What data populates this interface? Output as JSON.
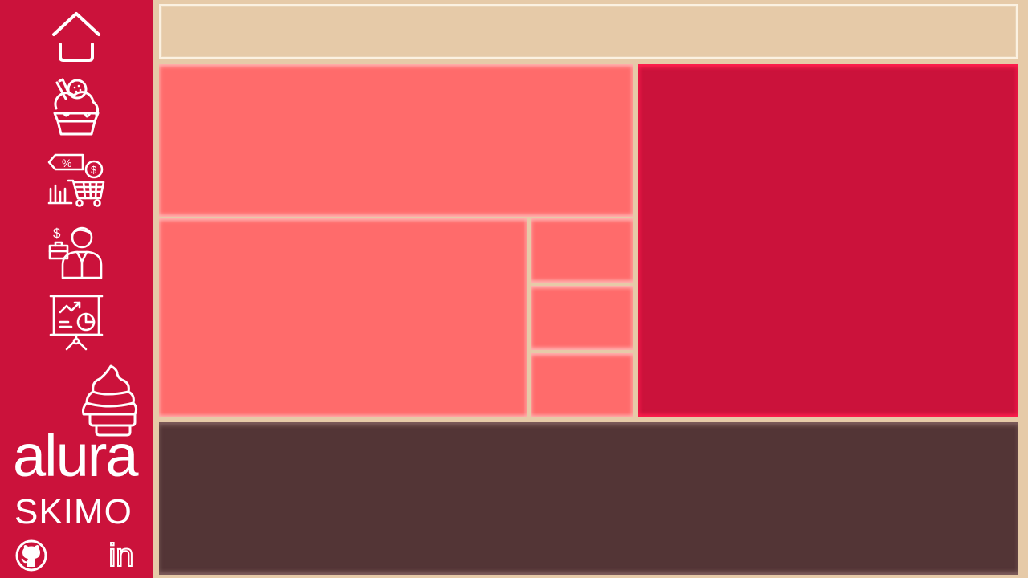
{
  "brand": {
    "name": "alura",
    "subtitle": "SKIMO"
  },
  "sidebar": {
    "nav": [
      {
        "icon": "home-icon"
      },
      {
        "icon": "ice-cream-icon"
      },
      {
        "icon": "sales-cart-icon"
      },
      {
        "icon": "salesperson-icon"
      },
      {
        "icon": "presentation-chart-icon"
      }
    ],
    "social": [
      {
        "icon": "github-icon"
      },
      {
        "icon": "linkedin-icon",
        "label": "in"
      }
    ]
  },
  "colors": {
    "sidebar": "#cb123b",
    "background": "#e6caa8",
    "coral_tile": "#ff6b6b",
    "crimson_tile": "#cb123b",
    "brown_tile": "#533536",
    "header_border": "#fbf1e1"
  }
}
